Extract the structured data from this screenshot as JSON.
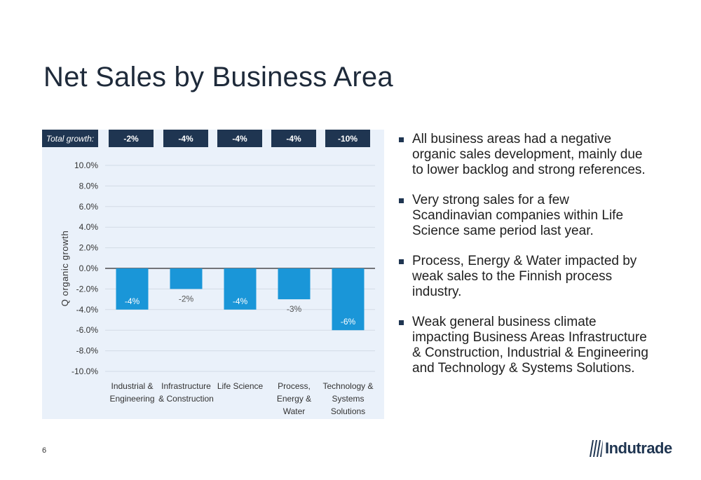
{
  "slide": {
    "title": "Net Sales by Business Area",
    "page_number": "6",
    "logo_text": "Indutrade"
  },
  "total_growth": {
    "label": "Total growth:",
    "values": [
      "-2%",
      "-4%",
      "-4%",
      "-4%",
      "-10%"
    ]
  },
  "bullets": [
    "All business areas had a negative organic sales development, mainly due to lower backlog and strong references.",
    "Very strong sales for a few Scandinavian companies within Life Science same period last year.",
    "Process, Energy & Water impacted by weak sales to the Finnish process industry.",
    "Weak general business climate impacting Business Areas Infrastructure & Construction, Industrial & Engineering and Technology & Systems Solutions."
  ],
  "colors": {
    "bar": "#1a96d8",
    "navy": "#1f3551",
    "panel": "#eaf1fa"
  },
  "chart_data": {
    "type": "bar",
    "ylabel": "Q organic growth",
    "ylim": [
      -10,
      10
    ],
    "yticks": [
      10,
      8,
      6,
      4,
      2,
      0,
      -2,
      -4,
      -6,
      -8,
      -10
    ],
    "ytick_labels": [
      "10.0%",
      "8.0%",
      "6.0%",
      "4.0%",
      "2.0%",
      "0.0%",
      "-2.0%",
      "-4.0%",
      "-6.0%",
      "-8.0%",
      "-10.0%"
    ],
    "grid": true,
    "categories": [
      [
        "Industrial &",
        "Engineering"
      ],
      [
        "Infrastructure",
        "& Construction"
      ],
      [
        "Life Science"
      ],
      [
        "Process,",
        "Energy &",
        "Water"
      ],
      [
        "Technology &",
        "Systems",
        "Solutions"
      ]
    ],
    "values": [
      -4,
      -2,
      -4,
      -3,
      -6
    ],
    "data_labels": [
      "-4%",
      "-2%",
      "-4%",
      "-3%",
      "-6%"
    ]
  }
}
